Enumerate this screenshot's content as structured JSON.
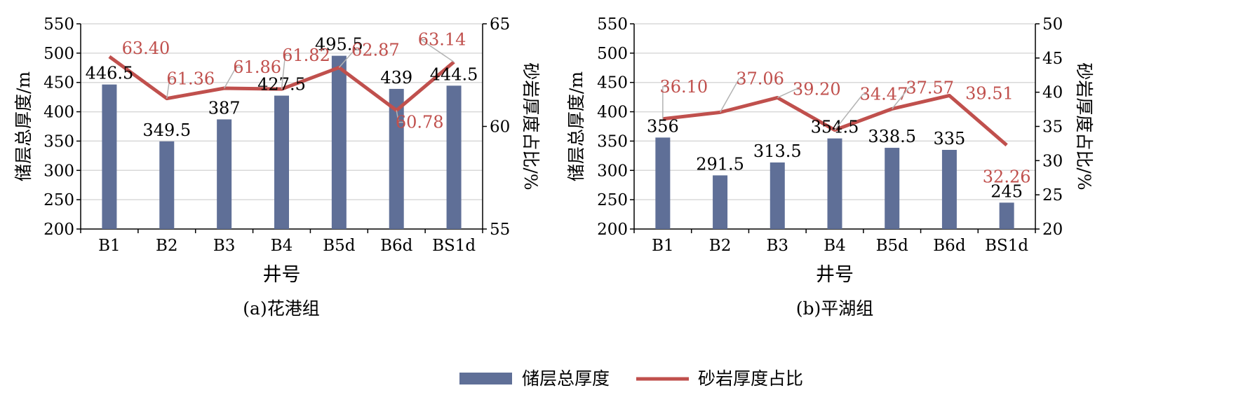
{
  "colors": {
    "bar": "#5f6f97",
    "line": "#c0504d",
    "leader": "#b3b3b3",
    "grid": "#d9d9d9",
    "axis": "#000000"
  },
  "legend": {
    "bar_label": "储层总厚度",
    "line_label": "砂岩厚度占比"
  },
  "chart_data": [
    {
      "type": "bar",
      "caption": "(a)花港组",
      "xlabel": "井号",
      "ylabel": "储层总厚度/m",
      "y2label": "砂岩厚度占比/%",
      "categories": [
        "B1",
        "B2",
        "B3",
        "B4",
        "B5d",
        "B6d",
        "BS1d"
      ],
      "ylim": [
        200,
        550
      ],
      "yticks": [
        200,
        250,
        300,
        350,
        400,
        450,
        500,
        550
      ],
      "y2lim": [
        55,
        65
      ],
      "y2ticks": [
        55,
        60,
        65
      ],
      "series": [
        {
          "name": "储层总厚度",
          "type": "bar",
          "axis": "left",
          "values": [
            446.5,
            349.5,
            387,
            427.5,
            495.5,
            439,
            444.5
          ],
          "labels": [
            "446.5",
            "349.5",
            "387",
            "427.5",
            "495.5",
            "439",
            "444.5"
          ]
        },
        {
          "name": "砂岩厚度占比",
          "type": "line",
          "axis": "right",
          "values": [
            63.4,
            61.36,
            61.86,
            61.82,
            62.87,
            60.78,
            63.14
          ],
          "labels": [
            "63.40",
            "61.36",
            "61.86",
            "61.82",
            "62.87",
            "60.78",
            "63.14"
          ]
        }
      ],
      "grid": true
    },
    {
      "type": "bar",
      "caption": "(b)平湖组",
      "xlabel": "井号",
      "ylabel": "储层总厚度/m",
      "y2label": "砂岩厚度占比/%",
      "categories": [
        "B1",
        "B2",
        "B3",
        "B4",
        "B5d",
        "B6d",
        "BS1d"
      ],
      "ylim": [
        200,
        550
      ],
      "yticks": [
        200,
        250,
        300,
        350,
        400,
        450,
        500,
        550
      ],
      "y2lim": [
        20,
        50
      ],
      "y2ticks": [
        20,
        25,
        30,
        35,
        40,
        45,
        50
      ],
      "series": [
        {
          "name": "储层总厚度",
          "type": "bar",
          "axis": "left",
          "values": [
            356,
            291.5,
            313.5,
            354.5,
            338.5,
            335,
            245
          ],
          "labels": [
            "356",
            "291.5",
            "313.5",
            "354.5",
            "338.5",
            "335",
            "245"
          ]
        },
        {
          "name": "砂岩厚度占比",
          "type": "line",
          "axis": "right",
          "values": [
            36.1,
            37.06,
            39.2,
            34.47,
            37.57,
            39.51,
            32.26
          ],
          "labels": [
            "36.10",
            "37.06",
            "39.20",
            "34.47",
            "37.57",
            "39.51",
            "32.26"
          ]
        }
      ],
      "grid": true
    }
  ]
}
